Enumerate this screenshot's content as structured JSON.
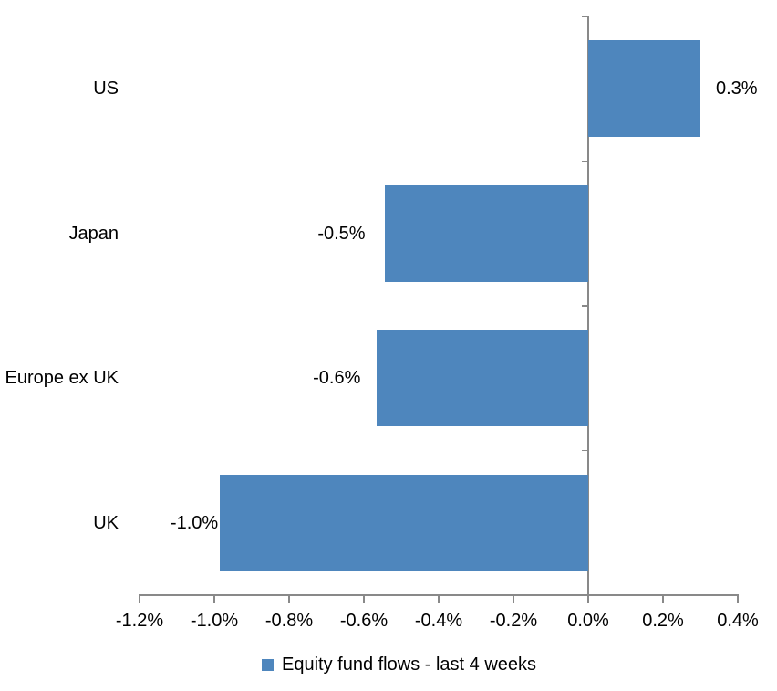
{
  "chart_data": {
    "type": "bar",
    "orientation": "horizontal",
    "categories": [
      "US",
      "Japan",
      "Europe ex UK",
      "UK"
    ],
    "series": [
      {
        "name": "Equity fund flows - last 4 weeks",
        "values": [
          0.3,
          -0.5,
          -0.6,
          -1.0
        ],
        "unit": "%"
      }
    ],
    "data_labels": [
      "0.3%",
      "-0.5%",
      "-0.6%",
      "-1.0%"
    ],
    "plotted_values": [
      0.3,
      -0.545,
      -0.565,
      -0.985
    ],
    "x_axis": {
      "tick_labels": [
        "-1.2%",
        "-1.0%",
        "-0.8%",
        "-0.6%",
        "-0.4%",
        "-0.2%",
        "0.0%",
        "0.2%",
        "0.4%"
      ],
      "tick_values": [
        -1.2,
        -1.0,
        -0.8,
        -0.6,
        -0.4,
        -0.2,
        0.0,
        0.2,
        0.4
      ],
      "range": [
        -1.2,
        0.4
      ]
    },
    "grid": false,
    "legend": {
      "label": "Equity fund flows - last 4 weeks",
      "position": "bottom-center"
    },
    "colors": {
      "bar": "#4E86BD",
      "axis": "#898989",
      "text": "#000000",
      "background": "#FFFFFF"
    }
  }
}
